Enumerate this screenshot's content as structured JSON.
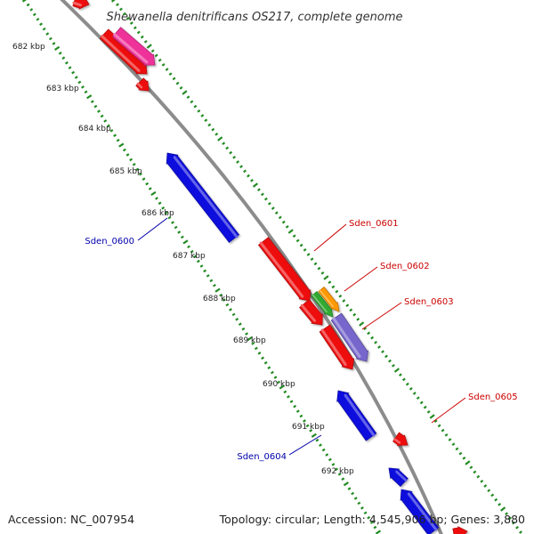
{
  "title": "Shewanella denitrificans OS217, complete genome",
  "footer": {
    "accession": "Accession: NC_007954",
    "summary": "Topology: circular; Length: 4,545,906 bp; Genes: 3,880"
  },
  "colors": {
    "backbone": "#8c8c8c",
    "tick": "#228b22",
    "forward_label": "#cc0000",
    "reverse_label": "#0000aa"
  },
  "ticks": [
    {
      "label": "682 kbp"
    },
    {
      "label": "683 kbp"
    },
    {
      "label": "684 kbp"
    },
    {
      "label": "685 kbp"
    },
    {
      "label": "686 kbp"
    },
    {
      "label": "687 kbp"
    },
    {
      "label": "688 kbp"
    },
    {
      "label": "689 kbp"
    },
    {
      "label": "690 kbp"
    },
    {
      "label": "691 kbp"
    },
    {
      "label": "692 kbp"
    }
  ],
  "features": [
    {
      "color": "#ee1111"
    },
    {
      "color": "#ee1111"
    },
    {
      "color": "#ee3399"
    },
    {
      "color": "#ee1111"
    },
    {
      "color": "#1111dd"
    },
    {
      "color": "#ee1111"
    },
    {
      "color": "#ee1111"
    },
    {
      "color": "#ee1111"
    },
    {
      "color": "#33aa33"
    },
    {
      "color": "#ff9900"
    },
    {
      "color": "#7766cc"
    },
    {
      "color": "#1111dd"
    },
    {
      "color": "#ee1111"
    },
    {
      "color": "#1111dd"
    },
    {
      "color": "#1111dd"
    },
    {
      "color": "#ee1111"
    }
  ],
  "gene_labels": [
    {
      "text": "Sden_0600",
      "strand": "reverse"
    },
    {
      "text": "Sden_0601",
      "strand": "forward"
    },
    {
      "text": "Sden_0602",
      "strand": "forward"
    },
    {
      "text": "Sden_0603",
      "strand": "forward"
    },
    {
      "text": "Sden_0604",
      "strand": "reverse"
    },
    {
      "text": "Sden_0605",
      "strand": "forward"
    }
  ]
}
